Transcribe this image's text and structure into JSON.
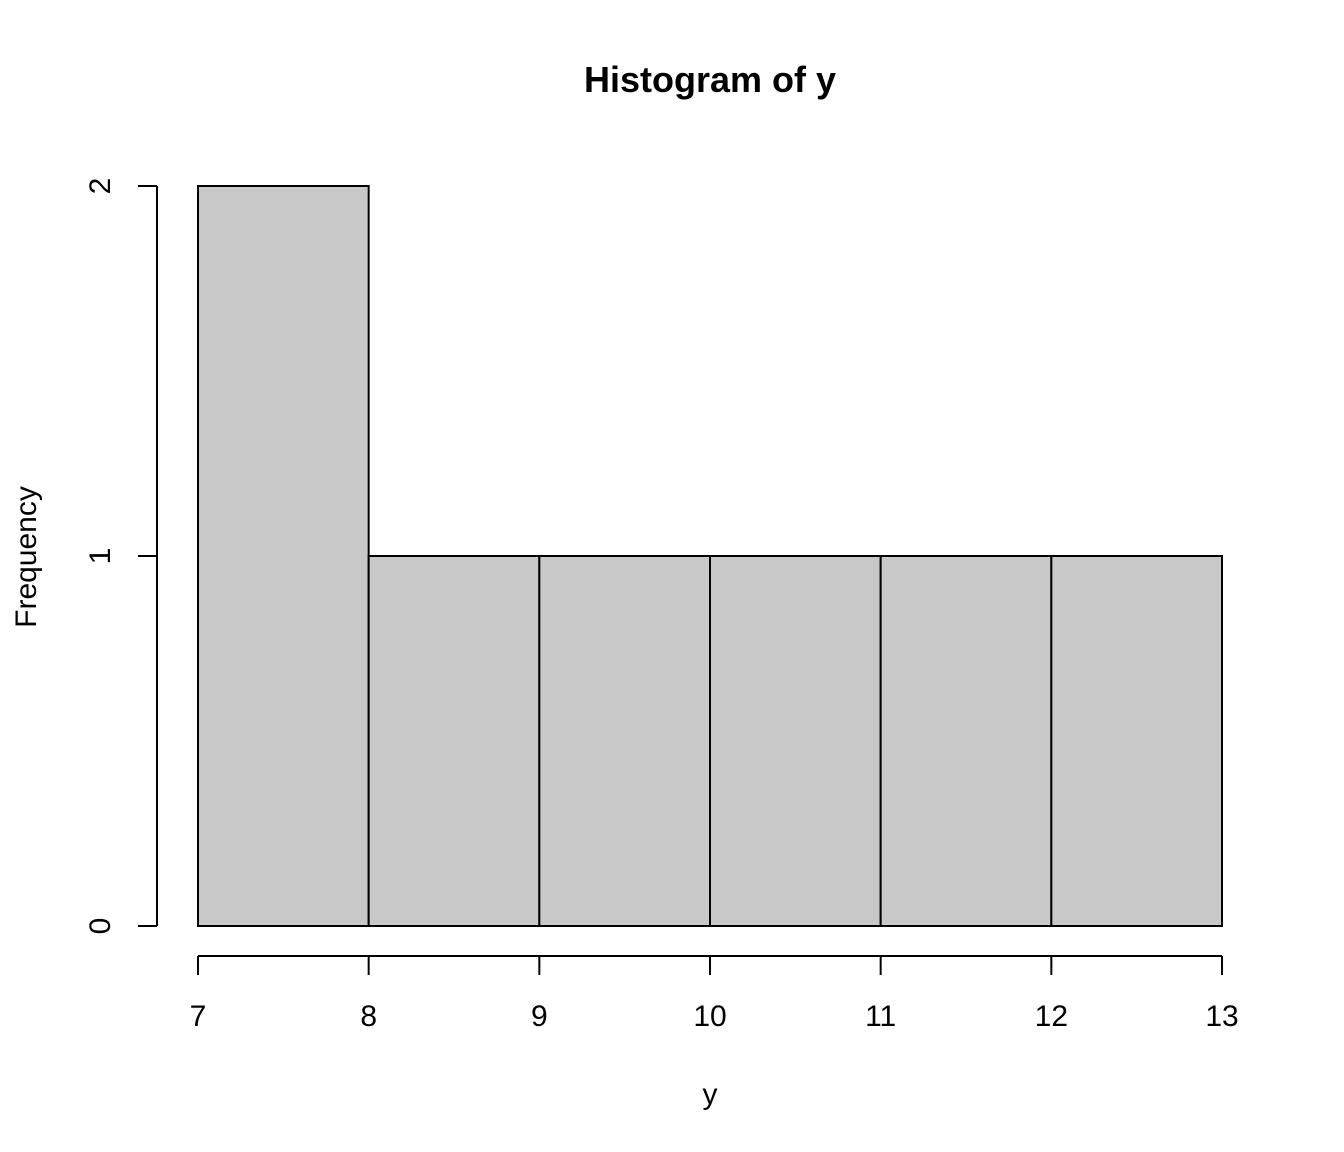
{
  "chart_data": {
    "type": "bar",
    "title": "Histogram of y",
    "xlabel": "y",
    "ylabel": "Frequency",
    "bins": [
      {
        "start": 7,
        "end": 8,
        "count": 2
      },
      {
        "start": 8,
        "end": 9,
        "count": 1
      },
      {
        "start": 9,
        "end": 10,
        "count": 1
      },
      {
        "start": 10,
        "end": 11,
        "count": 1
      },
      {
        "start": 11,
        "end": 12,
        "count": 1
      },
      {
        "start": 12,
        "end": 13,
        "count": 1
      }
    ],
    "xlim": [
      7,
      13
    ],
    "ylim": [
      0,
      2
    ],
    "xticks": [
      7,
      8,
      9,
      10,
      11,
      12,
      13
    ],
    "yticks": [
      0,
      1,
      2
    ],
    "bar_color": "#c8c8c8",
    "grid": false,
    "legend": "none"
  }
}
